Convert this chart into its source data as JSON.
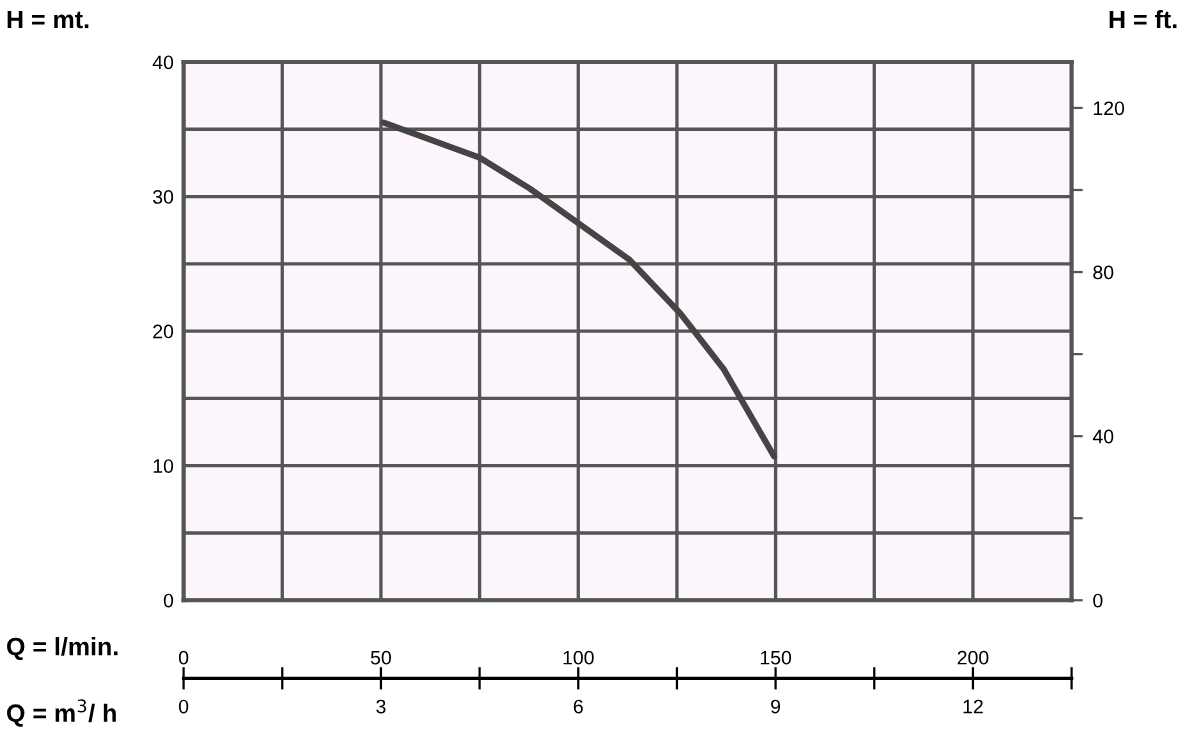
{
  "chart_data": {
    "type": "line",
    "xlabel": "Q = l/min.",
    "ylabel": "H = mt.",
    "y2label": "H = ft.",
    "x2label": "Q = m$^{3}$/ h",
    "x": [
      50.7,
      75,
      87.7,
      113,
      125.9,
      136.8,
      149.6
    ],
    "series": [
      {
        "color": "#444444",
        "values": [
          35.5,
          32.9,
          30.6,
          25.3,
          21.3,
          17.2,
          10.7
        ]
      }
    ],
    "xlim": [
      0,
      225
    ],
    "xticks": [
      0,
      {
        "value": 25,
        "label": null
      },
      50,
      {
        "value": 75,
        "label": null
      },
      100,
      {
        "value": 125,
        "label": null
      },
      150,
      {
        "value": 175,
        "label": null
      },
      200,
      {
        "value": 225,
        "label": null
      }
    ],
    "ylim": [
      0,
      40
    ],
    "yticks": [
      0,
      {
        "value": 5,
        "label": null
      },
      10,
      {
        "value": 15,
        "label": null
      },
      20,
      {
        "value": 25,
        "label": null
      },
      30,
      {
        "value": 35,
        "label": null
      },
      40
    ],
    "y2lim": [
      0,
      131.2
    ],
    "y2ticks": [
      0,
      {
        "value": 20,
        "label": null
      },
      40,
      {
        "value": 60,
        "label": null
      },
      80,
      {
        "value": 100,
        "label": null
      },
      120
    ],
    "x2lim": [
      0,
      13.5
    ],
    "x2ticks": [
      0,
      {
        "value": 1.5,
        "label": null
      },
      3,
      {
        "value": 4.5,
        "label": null
      },
      6,
      {
        "value": 7.5,
        "label": null
      },
      9,
      {
        "value": 10.5,
        "label": null
      },
      12,
      {
        "value": 13.5,
        "label": null
      }
    ],
    "grid": true,
    "legend": false,
    "marker": "none",
    "line_style": "solid"
  }
}
